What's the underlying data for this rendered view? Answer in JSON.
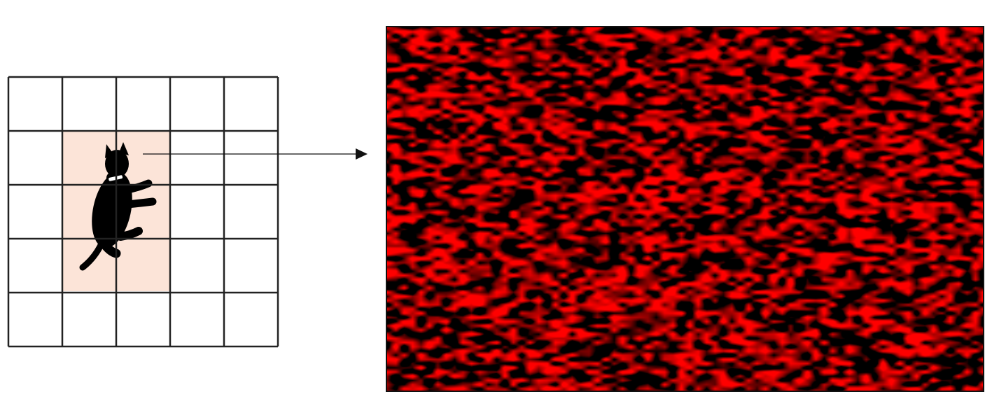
{
  "diagram": {
    "grid": {
      "rows": 5,
      "cols": 5,
      "line_color": "#222222",
      "highlight_color": "#fce4d8",
      "highlight_cells": {
        "row_start": 1,
        "row_end": 3,
        "col_start": 1,
        "col_end": 2
      }
    },
    "subject_icon": "cat-icon",
    "arrow_icon": "arrow-right-icon",
    "feature_map": {
      "palette": [
        "#000000",
        "#ff0000"
      ],
      "pattern": "noise-heatmap"
    }
  }
}
